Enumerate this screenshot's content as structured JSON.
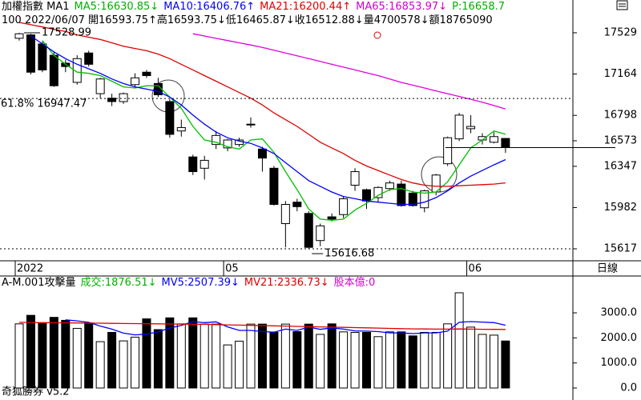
{
  "header": {
    "title": "加權指數 MA1",
    "items": [
      {
        "text": "MA5:16630.85↓",
        "color": "#00b000"
      },
      {
        "text": "MA10:16406.76↑",
        "color": "#0000ff"
      },
      {
        "text": "MA21:16200.44↑",
        "color": "#e00000"
      },
      {
        "text": "MA65:16853.97↓",
        "color": "#d000d0"
      },
      {
        "text": "P:16658.7",
        "color": "#00b000"
      }
    ],
    "quote": "100 2022/06/07 開16593.75↑高16593.75↓低16465.87↓收16512.88↓量4700578↓額18765090"
  },
  "volume_header": {
    "title": "A-M.001攻擊量",
    "items": [
      {
        "text": "成交:1876.51↓",
        "color": "#00b000"
      },
      {
        "text": "MV5:2507.39↓",
        "color": "#0000ff"
      },
      {
        "text": "MV21:2336.73↓",
        "color": "#e00000"
      },
      {
        "text": "股本億:0",
        "color": "#d000d0"
      }
    ]
  },
  "period": "日線",
  "footer": "奇狐勝券 v5.2",
  "chart_data": [
    {
      "type": "candlestick",
      "categories": [
        "2022",
        null,
        null,
        null,
        null,
        null,
        null,
        null,
        null,
        null,
        null,
        null,
        null,
        null,
        null,
        null,
        null,
        null,
        "05",
        null,
        null,
        null,
        null,
        null,
        null,
        null,
        null,
        null,
        null,
        null,
        null,
        null,
        null,
        null,
        null,
        null,
        null,
        null,
        null,
        "06",
        null,
        null,
        null
      ],
      "open": [
        17480,
        17510,
        17430,
        17330,
        17260,
        17090,
        17350,
        16990,
        16950,
        16920,
        17070,
        17180,
        17080,
        16920,
        16660,
        16430,
        16330,
        16540,
        16510,
        16540,
        16720,
        16500,
        16330,
        15840,
        16030,
        15930,
        15690,
        15900,
        15920,
        16180,
        16140,
        16070,
        16150,
        16190,
        16110,
        15980,
        16120,
        16370,
        16590,
        16680,
        16580,
        16560,
        16593.75
      ],
      "high": [
        17528.99,
        17520,
        17450,
        17360,
        17290,
        17330,
        17370,
        17130,
        16990,
        17000,
        17170,
        17200,
        17130,
        16940,
        16760,
        16450,
        16440,
        16660,
        16590,
        16600,
        16780,
        16520,
        16350,
        16040,
        16060,
        15950,
        15840,
        15930,
        16080,
        16330,
        16150,
        16170,
        16220,
        16220,
        16130,
        16140,
        16280,
        16610,
        16820,
        16800,
        16640,
        16650,
        16593.75
      ],
      "low": [
        17460,
        17160,
        17180,
        17050,
        17180,
        17070,
        17230,
        16950,
        16880,
        16900,
        17040,
        17130,
        16960,
        16600,
        16610,
        16270,
        16230,
        16500,
        16480,
        16520,
        16690,
        16300,
        16000,
        15630,
        15950,
        15616.68,
        15640,
        15860,
        15890,
        16130,
        15970,
        16030,
        16130,
        15990,
        15990,
        15940,
        16090,
        16350,
        16570,
        16640,
        16540,
        16550,
        16465.87
      ],
      "close": [
        17520,
        17180,
        17200,
        17060,
        17230,
        17300,
        17250,
        17120,
        16920,
        16990,
        17130,
        17150,
        16980,
        16630,
        16690,
        16300,
        16400,
        16620,
        16580,
        16580,
        16720,
        16420,
        16010,
        16010,
        15990,
        15630,
        15820,
        15880,
        16060,
        16300,
        16040,
        16160,
        16200,
        16000,
        16000,
        16130,
        16270,
        16600,
        16800,
        16700,
        16610,
        16610,
        16512.88
      ],
      "up_color": "#ffffff",
      "down_color": "#000000",
      "series": [
        {
          "name": "MA5",
          "color": "#00c000",
          "values": [
            null,
            null,
            17460,
            17330,
            17250,
            17180,
            17170,
            17150,
            17100,
            17050,
            17040,
            17060,
            17060,
            16960,
            16860,
            16700,
            16580,
            16560,
            16520,
            16500,
            16580,
            16590,
            16470,
            16300,
            16140,
            15970,
            15880,
            15870,
            15880,
            15960,
            16020,
            16090,
            16140,
            16150,
            16120,
            16110,
            16120,
            16210,
            16360,
            16510,
            16580,
            16660,
            16630.85
          ]
        },
        {
          "name": "MA10",
          "color": "#0000ff",
          "values": [
            null,
            17500,
            17430,
            17360,
            17300,
            17250,
            17210,
            17170,
            17120,
            17080,
            17050,
            17030,
            17010,
            16960,
            16890,
            16800,
            16720,
            16650,
            16600,
            16570,
            16550,
            16510,
            16460,
            16380,
            16300,
            16220,
            16170,
            16120,
            16080,
            16060,
            16040,
            16030,
            16020,
            16010,
            16010,
            16030,
            16070,
            16130,
            16200,
            16260,
            16310,
            16360,
            16406.76
          ]
        },
        {
          "name": "MA21",
          "color": "#e00000",
          "values": [
            17620,
            17600,
            17580,
            17560,
            17540,
            17510,
            17490,
            17470,
            17440,
            17410,
            17390,
            17370,
            17340,
            17300,
            17250,
            17200,
            17150,
            17100,
            17050,
            17000,
            16950,
            16890,
            16820,
            16760,
            16700,
            16630,
            16560,
            16510,
            16460,
            16400,
            16350,
            16310,
            16270,
            16230,
            16200,
            16180,
            16170,
            16170,
            16175,
            16180,
            16185,
            16190,
            16200.44
          ]
        },
        {
          "name": "MA65",
          "color": "#e000e0",
          "values": [
            null,
            null,
            null,
            null,
            null,
            null,
            null,
            null,
            null,
            null,
            null,
            null,
            null,
            null,
            null,
            17520,
            17500,
            17480,
            17460,
            17440,
            17420,
            17400,
            17375,
            17350,
            17325,
            17300,
            17275,
            17250,
            17225,
            17200,
            17175,
            17150,
            17120,
            17090,
            17065,
            17040,
            17015,
            16990,
            16965,
            16940,
            16915,
            16885,
            16853.97
          ]
        }
      ],
      "ylim": [
        15518,
        17649
      ],
      "yticks": [
        17529,
        17164,
        16798,
        16573,
        16347,
        15982,
        15617
      ],
      "high_mark": 17528.99,
      "low_mark": 15616.68,
      "fib": {
        "value": 16947.47,
        "label": "61.8% 16947.47"
      }
    },
    {
      "type": "bar",
      "values": [
        2560,
        2900,
        2600,
        2820,
        2700,
        2380,
        2600,
        1850,
        2220,
        1880,
        2030,
        2760,
        2330,
        2800,
        2560,
        2800,
        2550,
        2550,
        1720,
        1870,
        2550,
        2550,
        2220,
        2550,
        2250,
        2550,
        2140,
        2560,
        2240,
        2220,
        2220,
        2050,
        2240,
        2240,
        2080,
        2220,
        2220,
        2560,
        3800,
        2430,
        2140,
        2110,
        1876.51
      ],
      "series": [
        {
          "name": "MV5",
          "color": "#0000ff",
          "values": [
            null,
            null,
            null,
            null,
            2720,
            2680,
            2620,
            2470,
            2350,
            2190,
            2120,
            2150,
            2240,
            2390,
            2500,
            2650,
            2610,
            2640,
            2440,
            2300,
            2300,
            2250,
            2230,
            2350,
            2300,
            2430,
            2340,
            2400,
            2350,
            2280,
            2270,
            2250,
            2200,
            2200,
            2170,
            2200,
            2200,
            2270,
            2620,
            2650,
            2630,
            2610,
            2507.39
          ]
        },
        {
          "name": "MV21",
          "color": "#e00000",
          "values": [
            2620,
            2615,
            2610,
            2605,
            2600,
            2595,
            2590,
            2585,
            2580,
            2575,
            2570,
            2565,
            2560,
            2555,
            2550,
            2545,
            2540,
            2530,
            2520,
            2510,
            2500,
            2490,
            2480,
            2470,
            2460,
            2450,
            2440,
            2430,
            2420,
            2410,
            2400,
            2390,
            2380,
            2370,
            2360,
            2355,
            2350,
            2350,
            2355,
            2350,
            2345,
            2340,
            2336.73
          ]
        }
      ],
      "ylim": [
        0,
        4470
      ],
      "yticks": [
        {
          "value": 0,
          "label": "0.0"
        },
        {
          "value": 1000,
          "label": "1000.0"
        },
        {
          "value": 2000,
          "label": "2000.0"
        },
        {
          "value": 3000,
          "label": "3000.0"
        }
      ]
    }
  ]
}
